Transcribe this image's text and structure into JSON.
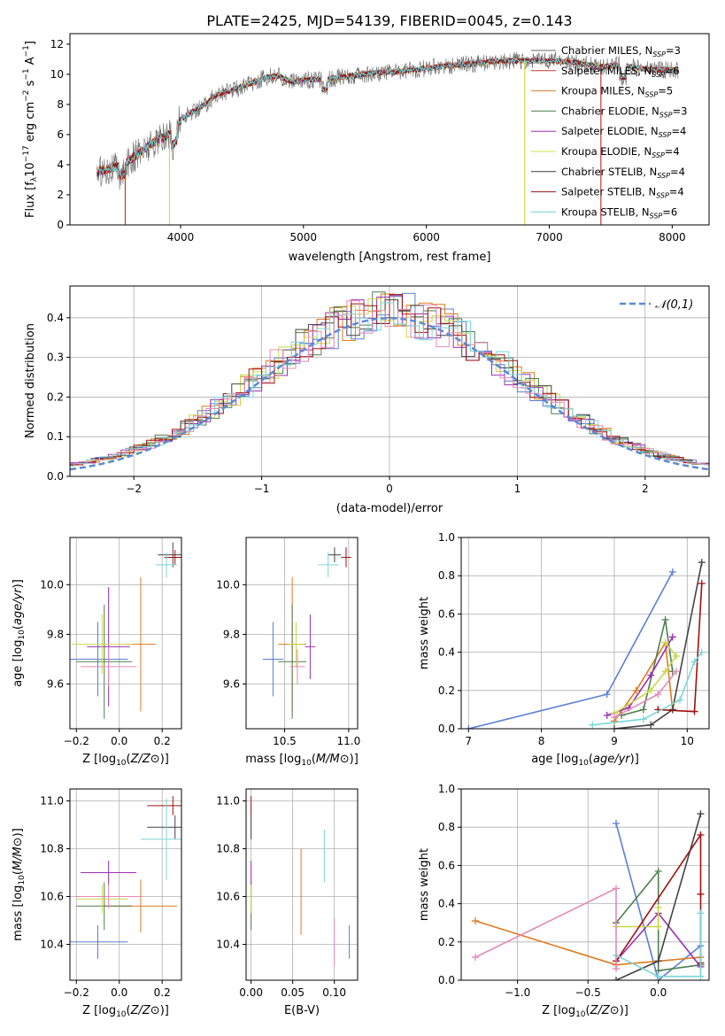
{
  "figure": {
    "title": "PLATE=2425, MJD=54139, FIBERID=0045, z=0.143"
  },
  "colors": {
    "cm": "#6a6a6a",
    "sm": "#c0392b",
    "km": "#dc7f2a",
    "ce": "#4e7f4e",
    "se": "#9b30b4",
    "ke": "#d2df4a",
    "cs": "#3a3a3a",
    "ss": "#a01010",
    "ks": "#6fd6d6",
    "blue": "#5a7fd6",
    "orange": "#e07a20",
    "green": "#4e7f4e",
    "purple": "#9b30b4",
    "yellow": "#c8d84a",
    "dark": "#444444",
    "red": "#a01010",
    "cyan": "#7ad6d6",
    "pink": "#e48ab8"
  },
  "chart_data": [
    {
      "id": "spectrum",
      "type": "line",
      "xlabel": "wavelength [Angstrom, rest frame]",
      "ylabel": "Flux [f_λ10^-17 erg cm^-2 s^-1 A^-1]",
      "xlim": [
        3100,
        8300
      ],
      "ylim": [
        0,
        12.7
      ],
      "xticks": [
        4000,
        5000,
        6000,
        7000,
        8000
      ],
      "yticks": [
        0,
        2,
        4,
        6,
        8,
        10,
        12
      ],
      "legend_position": "upper-right",
      "series": [
        {
          "name": "Chabrier MILES, N_SSP=3",
          "color_key": "cm"
        },
        {
          "name": "Salpeter MILES, N_SSP=6",
          "color_key": "sm"
        },
        {
          "name": "Kroupa MILES, N_SSP=5",
          "color_key": "km"
        },
        {
          "name": "Chabrier ELODIE, N_SSP=3",
          "color_key": "ce"
        },
        {
          "name": "Salpeter ELODIE, N_SSP=4",
          "color_key": "se"
        },
        {
          "name": "Kroupa ELODIE, N_SSP=4",
          "color_key": "ke"
        },
        {
          "name": "Chabrier STELIB, N_SSP=4",
          "color_key": "cs"
        },
        {
          "name": "Salpeter STELIB, N_SSP=4",
          "color_key": "ss"
        },
        {
          "name": "Kroupa STELIB, N_SSP=6",
          "color_key": "ks"
        }
      ],
      "envelope": {
        "x": [
          3300,
          3400,
          3500,
          3600,
          3700,
          3800,
          3900,
          4000,
          4100,
          4200,
          4300,
          4400,
          4500,
          4600,
          4700,
          4800,
          4900,
          5000,
          5200,
          5400,
          5600,
          5800,
          6000,
          6200,
          6400,
          6600,
          6800,
          7000,
          7200,
          7400,
          7600,
          7800,
          8000,
          8200
        ],
        "y": [
          3.5,
          3.7,
          3.9,
          4.4,
          5.0,
          5.6,
          5.9,
          7.0,
          7.5,
          8.0,
          8.7,
          8.9,
          9.2,
          9.5,
          9.8,
          9.9,
          9.5,
          9.6,
          9.7,
          9.9,
          10.1,
          10.2,
          10.4,
          10.6,
          10.7,
          10.9,
          10.9,
          10.9,
          10.8,
          10.5,
          10.6,
          10.3,
          10.3,
          10.2
        ]
      }
    },
    {
      "id": "residual-hist",
      "type": "line",
      "xlabel": "(data-model)/error",
      "ylabel": "Normed distribution",
      "xlim": [
        -2.5,
        2.5
      ],
      "ylim": [
        0,
        0.48
      ],
      "xticks": [
        -2,
        -1,
        0,
        1,
        2
      ],
      "yticks": [
        0.0,
        0.1,
        0.2,
        0.3,
        0.4
      ],
      "legend_label": "𝒩(0,1)",
      "legend_position": "upper-right",
      "bin_width": 0.1,
      "series_color_keys": [
        "blue",
        "orange",
        "green",
        "purple",
        "yellow",
        "dark",
        "red",
        "cyan",
        "pink"
      ]
    },
    {
      "id": "z-age",
      "type": "scatter",
      "xlabel": "Z [log10(Z/Z⊙)]",
      "ylabel": "age  [log10(age/yr)]",
      "xlim": [
        -0.23,
        0.29
      ],
      "ylim": [
        9.42,
        10.19
      ],
      "xticks": [
        -0.2,
        0.0,
        0.2
      ],
      "yticks": [
        9.6,
        9.8,
        10.0
      ],
      "points": [
        {
          "x": -0.1,
          "y": 9.7,
          "xerr": 0.14,
          "yerr": 0.15,
          "color_key": "blue"
        },
        {
          "x": 0.1,
          "y": 9.76,
          "xerr": 0.07,
          "yerr": 0.27,
          "color_key": "orange"
        },
        {
          "x": -0.07,
          "y": 9.69,
          "xerr": 0.13,
          "yerr": 0.23,
          "color_key": "green"
        },
        {
          "x": -0.05,
          "y": 9.75,
          "xerr": 0.1,
          "yerr": 0.24,
          "color_key": "purple"
        },
        {
          "x": -0.08,
          "y": 9.76,
          "xerr": 0.14,
          "yerr": 0.12,
          "color_key": "yellow"
        },
        {
          "x": 0.25,
          "y": 10.12,
          "xerr": 0.07,
          "yerr": 0.05,
          "color_key": "dark"
        },
        {
          "x": 0.26,
          "y": 10.11,
          "xerr": 0.05,
          "yerr": 0.03,
          "color_key": "red"
        },
        {
          "x": 0.22,
          "y": 10.08,
          "xerr": 0.05,
          "yerr": 0.05,
          "color_key": "cyan"
        },
        {
          "x": -0.05,
          "y": 9.67,
          "xerr": 0.13,
          "yerr": 0.08,
          "color_key": "pink"
        }
      ]
    },
    {
      "id": "mass-age",
      "type": "scatter",
      "xlabel": "mass [log10(M/M⊙)]",
      "ylabel": "",
      "xlim": [
        10.2,
        11.07
      ],
      "ylim": [
        9.42,
        10.19
      ],
      "xticks": [
        10.5,
        11.0
      ],
      "yticks": [
        9.6,
        9.8,
        10.0
      ],
      "points": [
        {
          "x": 10.41,
          "y": 9.7,
          "xerr": 0.08,
          "yerr": 0.15,
          "color_key": "blue"
        },
        {
          "x": 10.56,
          "y": 9.76,
          "xerr": 0.11,
          "yerr": 0.27,
          "color_key": "orange"
        },
        {
          "x": 10.56,
          "y": 9.69,
          "xerr": 0.11,
          "yerr": 0.23,
          "color_key": "green"
        },
        {
          "x": 10.7,
          "y": 9.75,
          "xerr": 0.04,
          "yerr": 0.13,
          "color_key": "purple"
        },
        {
          "x": 10.59,
          "y": 9.76,
          "xerr": 0.06,
          "yerr": 0.09,
          "color_key": "yellow"
        },
        {
          "x": 10.89,
          "y": 10.12,
          "xerr": 0.05,
          "yerr": 0.03,
          "color_key": "dark"
        },
        {
          "x": 10.98,
          "y": 10.11,
          "xerr": 0.04,
          "yerr": 0.04,
          "color_key": "red"
        },
        {
          "x": 10.84,
          "y": 10.08,
          "xerr": 0.08,
          "yerr": 0.05,
          "color_key": "cyan"
        },
        {
          "x": 10.6,
          "y": 9.67,
          "xerr": 0.06,
          "yerr": 0.07,
          "color_key": "pink"
        }
      ]
    },
    {
      "id": "age-weight",
      "type": "line",
      "xlabel": "age  [log10(age/yr)]",
      "ylabel": "mass weight",
      "xlim": [
        6.9,
        10.3
      ],
      "ylim": [
        0,
        1.0
      ],
      "xticks": [
        7,
        8,
        9,
        10
      ],
      "yticks": [
        0.0,
        0.2,
        0.4,
        0.6,
        0.8,
        1.0
      ],
      "series": [
        {
          "color_key": "blue",
          "points": [
            [
              7.0,
              0.0
            ],
            [
              8.9,
              0.18
            ],
            [
              9.8,
              0.82
            ]
          ]
        },
        {
          "color_key": "orange",
          "points": [
            [
              9.0,
              0.04
            ],
            [
              9.3,
              0.2
            ],
            [
              9.7,
              0.45
            ],
            [
              9.8,
              0.1
            ]
          ]
        },
        {
          "color_key": "green",
          "points": [
            [
              9.1,
              0.07
            ],
            [
              9.4,
              0.1
            ],
            [
              9.7,
              0.57
            ],
            [
              9.8,
              0.3
            ]
          ]
        },
        {
          "color_key": "purple",
          "points": [
            [
              8.9,
              0.07
            ],
            [
              9.2,
              0.11
            ],
            [
              9.5,
              0.28
            ],
            [
              9.8,
              0.48
            ]
          ]
        },
        {
          "color_key": "yellow",
          "points": [
            [
              9.0,
              0.08
            ],
            [
              9.5,
              0.2
            ],
            [
              9.7,
              0.3
            ],
            [
              9.85,
              0.38
            ],
            [
              9.7,
              0.45
            ]
          ]
        },
        {
          "color_key": "dark",
          "points": [
            [
              9.0,
              0.0
            ],
            [
              9.5,
              0.02
            ],
            [
              9.8,
              0.1
            ],
            [
              10.2,
              0.87
            ]
          ]
        },
        {
          "color_key": "red",
          "points": [
            [
              9.6,
              0.1
            ],
            [
              10.1,
              0.09
            ],
            [
              10.2,
              0.76
            ]
          ]
        },
        {
          "color_key": "cyan",
          "points": [
            [
              8.7,
              0.02
            ],
            [
              9.4,
              0.05
            ],
            [
              9.9,
              0.15
            ],
            [
              10.1,
              0.35
            ],
            [
              10.2,
              0.4
            ]
          ]
        },
        {
          "color_key": "pink",
          "points": [
            [
              9.0,
              0.06
            ],
            [
              9.6,
              0.18
            ],
            [
              9.85,
              0.3
            ]
          ]
        }
      ]
    },
    {
      "id": "z-mass",
      "type": "scatter",
      "xlabel": "Z [log10(Z/Z⊙)]",
      "ylabel": "mass [log10(M/M⊙)]",
      "xlim": [
        -0.23,
        0.29
      ],
      "ylim": [
        10.25,
        11.05
      ],
      "xticks": [
        -0.2,
        0.0,
        0.2
      ],
      "yticks": [
        10.4,
        10.6,
        10.8,
        11.0
      ],
      "points": [
        {
          "x": -0.1,
          "y": 10.41,
          "xerr": 0.14,
          "yerr": 0.07,
          "color_key": "blue"
        },
        {
          "x": 0.1,
          "y": 10.56,
          "xerr": 0.17,
          "yerr": 0.11,
          "color_key": "orange"
        },
        {
          "x": -0.07,
          "y": 10.56,
          "xerr": 0.13,
          "yerr": 0.1,
          "color_key": "green"
        },
        {
          "x": -0.05,
          "y": 10.7,
          "xerr": 0.13,
          "yerr": 0.05,
          "color_key": "purple"
        },
        {
          "x": -0.08,
          "y": 10.59,
          "xerr": 0.12,
          "yerr": 0.06,
          "color_key": "yellow"
        },
        {
          "x": 0.26,
          "y": 10.89,
          "xerr": 0.13,
          "yerr": 0.05,
          "color_key": "dark"
        },
        {
          "x": 0.25,
          "y": 10.98,
          "xerr": 0.12,
          "yerr": 0.04,
          "color_key": "red"
        },
        {
          "x": 0.22,
          "y": 10.84,
          "xerr": 0.12,
          "yerr": 0.17,
          "color_key": "cyan"
        },
        {
          "x": -0.05,
          "y": 10.6,
          "xerr": 0.16,
          "yerr": 0.05,
          "color_key": "pink"
        }
      ]
    },
    {
      "id": "ebv-mass",
      "type": "scatter",
      "xlabel": "E(B-V)",
      "ylabel": "",
      "xlim": [
        -0.006,
        0.128
      ],
      "ylim": [
        10.25,
        11.05
      ],
      "xticks": [
        0.0,
        0.05,
        0.1
      ],
      "yticks": [
        10.4,
        10.6,
        10.8,
        11.0
      ],
      "points": [
        {
          "x": 0.118,
          "y": 10.41,
          "yerr": 0.07,
          "color_key": "blue"
        },
        {
          "x": 0.06,
          "y": 10.62,
          "yerr": 0.18,
          "color_key": "orange"
        },
        {
          "x": 0.0,
          "y": 10.56,
          "yerr": 0.1,
          "color_key": "green"
        },
        {
          "x": 0.0,
          "y": 10.7,
          "yerr": 0.05,
          "color_key": "purple"
        },
        {
          "x": 0.0,
          "y": 10.59,
          "yerr": 0.06,
          "color_key": "yellow"
        },
        {
          "x": 0.0,
          "y": 10.89,
          "yerr": 0.05,
          "color_key": "dark"
        },
        {
          "x": 0.0,
          "y": 10.98,
          "yerr": 0.04,
          "color_key": "red"
        },
        {
          "x": 0.088,
          "y": 10.77,
          "yerr": 0.11,
          "color_key": "cyan"
        },
        {
          "x": 0.1,
          "y": 10.41,
          "yerr": 0.1,
          "color_key": "pink"
        }
      ]
    },
    {
      "id": "z-weight",
      "type": "line",
      "xlabel": "Z [log10(Z/Z⊙)]",
      "ylabel": "mass weight",
      "xlim": [
        -1.4,
        0.36
      ],
      "ylim": [
        0,
        1.0
      ],
      "xticks": [
        -1.0,
        -0.5,
        0.0
      ],
      "yticks": [
        0.0,
        0.2,
        0.4,
        0.6,
        0.8,
        1.0
      ],
      "series": [
        {
          "color_key": "blue",
          "points": [
            [
              -0.3,
              0.82
            ],
            [
              0.0,
              0.0
            ],
            [
              0.3,
              0.18
            ]
          ]
        },
        {
          "color_key": "orange",
          "points": [
            [
              -1.3,
              0.31
            ],
            [
              -0.3,
              0.08
            ],
            [
              0.0,
              0.1
            ],
            [
              0.3,
              0.12
            ]
          ]
        },
        {
          "color_key": "green",
          "points": [
            [
              -0.3,
              0.3
            ],
            [
              0.0,
              0.57
            ],
            [
              0.0,
              0.05
            ],
            [
              0.3,
              0.08
            ]
          ]
        },
        {
          "color_key": "purple",
          "points": [
            [
              -0.3,
              0.1
            ],
            [
              0.0,
              0.35
            ],
            [
              0.3,
              0.07
            ]
          ]
        },
        {
          "color_key": "yellow",
          "points": [
            [
              -0.3,
              0.28
            ],
            [
              0.0,
              0.28
            ],
            [
              0.0,
              0.38
            ]
          ]
        },
        {
          "color_key": "dark",
          "points": [
            [
              -0.3,
              0.0
            ],
            [
              0.0,
              0.1
            ],
            [
              0.3,
              0.87
            ]
          ]
        },
        {
          "color_key": "red",
          "points": [
            [
              -0.3,
              0.1
            ],
            [
              0.3,
              0.76
            ],
            [
              0.3,
              0.45
            ],
            [
              0.3,
              0.09
            ]
          ]
        },
        {
          "color_key": "cyan",
          "points": [
            [
              -0.3,
              0.13
            ],
            [
              0.0,
              0.02
            ],
            [
              0.3,
              0.02
            ],
            [
              0.3,
              0.35
            ]
          ]
        },
        {
          "color_key": "pink",
          "points": [
            [
              -1.3,
              0.12
            ],
            [
              -0.3,
              0.48
            ],
            [
              -0.3,
              0.06
            ]
          ]
        }
      ]
    }
  ]
}
